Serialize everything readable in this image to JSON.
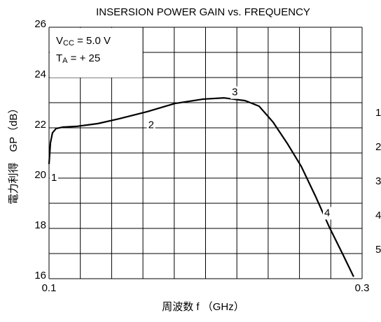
{
  "chart_data": {
    "type": "line",
    "title": "INSERSION POWER GAIN vs. FREQUENCY",
    "xlabel": "周波数 f （GHz）",
    "ylabel": "電力利得　GP（dB）",
    "legend": [
      {
        "main": "V",
        "sub": "CC",
        "rest": " = 5.0 V"
      },
      {
        "main": "T",
        "sub": "A",
        "rest": " =  + 25"
      }
    ],
    "x": [
      0.1,
      0.1009,
      0.1022,
      0.1045,
      0.1089,
      0.1179,
      0.1313,
      0.1447,
      0.1626,
      0.1805,
      0.1984,
      0.2119,
      0.2253,
      0.2342,
      0.2432,
      0.2521,
      0.2611,
      0.27,
      0.279,
      0.2879,
      0.2946
    ],
    "series": [
      {
        "name": "GP",
        "color": "#000000",
        "values": [
          20.56,
          21.4,
          21.8,
          21.97,
          22.03,
          22.06,
          22.17,
          22.36,
          22.64,
          22.97,
          23.14,
          23.19,
          23.08,
          22.86,
          22.22,
          21.39,
          20.47,
          19.31,
          18.06,
          16.94,
          16.08
        ]
      }
    ],
    "xlim": [
      0.1,
      0.3
    ],
    "xticks": [
      0.1,
      0.3
    ],
    "xgrid": [
      0.12,
      0.14,
      0.16,
      0.18,
      0.2,
      0.22,
      0.24,
      0.26,
      0.28
    ],
    "ylim": [
      16,
      26
    ],
    "yticks": [
      16,
      18,
      20,
      22,
      24,
      26
    ],
    "ygrid": [
      17,
      19,
      21,
      23,
      25
    ],
    "annotations": [
      {
        "text": "1",
        "x": 0.1,
        "y": 20
      },
      {
        "text": "2",
        "x": 0.162,
        "y": 22.1
      },
      {
        "text": "3",
        "x": 0.2155,
        "y": 23.4
      },
      {
        "text": "4",
        "x": 0.2745,
        "y": 18.6
      }
    ],
    "side_labels": [
      "1",
      "2",
      "3",
      "4",
      "5"
    ]
  }
}
